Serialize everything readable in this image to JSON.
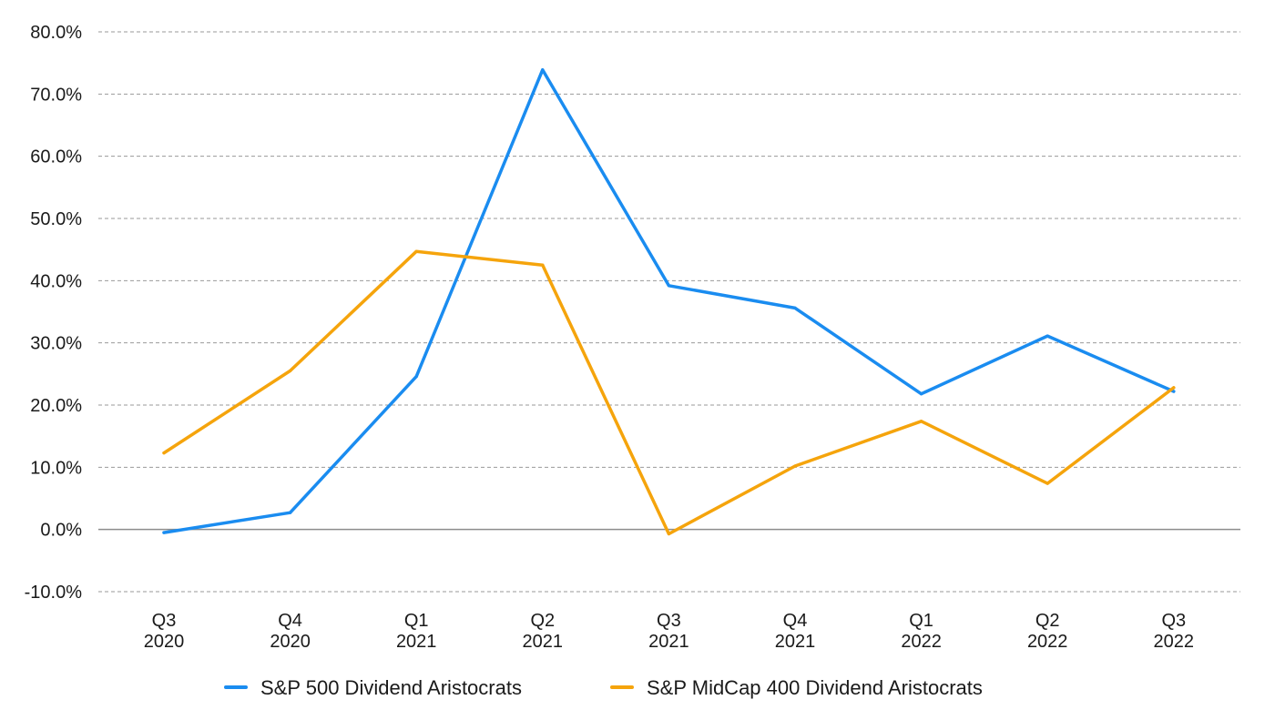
{
  "chart_data": {
    "type": "line",
    "title": "",
    "xlabel": "",
    "ylabel": "",
    "ylim": [
      -10,
      80
    ],
    "y_ticks": [
      -10,
      0,
      10,
      20,
      30,
      40,
      50,
      60,
      70,
      80
    ],
    "y_tick_labels": [
      "-10.0%",
      "0.0%",
      "10.0%",
      "20.0%",
      "30.0%",
      "40.0%",
      "50.0%",
      "60.0%",
      "70.0%",
      "80.0%"
    ],
    "categories": [
      {
        "quarter": "Q3",
        "year": "2020"
      },
      {
        "quarter": "Q4",
        "year": "2020"
      },
      {
        "quarter": "Q1",
        "year": "2021"
      },
      {
        "quarter": "Q2",
        "year": "2021"
      },
      {
        "quarter": "Q3",
        "year": "2021"
      },
      {
        "quarter": "Q4",
        "year": "2021"
      },
      {
        "quarter": "Q1",
        "year": "2022"
      },
      {
        "quarter": "Q2",
        "year": "2022"
      },
      {
        "quarter": "Q3",
        "year": "2022"
      }
    ],
    "grid": true,
    "legend_position": "bottom-center",
    "series": [
      {
        "name": "S&P 500 Dividend Aristocrats",
        "color": "#1a8cf0",
        "values": [
          -0.5,
          2.7,
          24.6,
          73.9,
          39.2,
          35.6,
          21.8,
          31.1,
          22.2
        ]
      },
      {
        "name": "S&P MidCap 400 Dividend Aristocrats",
        "color": "#f5a40c",
        "values": [
          12.3,
          25.5,
          44.7,
          42.5,
          -0.7,
          10.2,
          17.4,
          7.4,
          22.8
        ]
      }
    ]
  }
}
